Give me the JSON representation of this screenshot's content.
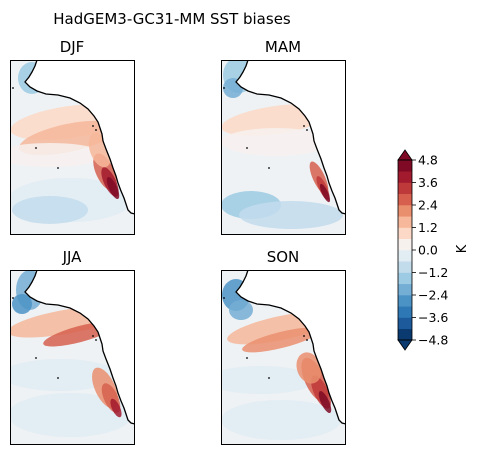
{
  "title": "HadGEM3-GC31-MM SST biases",
  "chart_data": [
    {
      "type": "heatmap",
      "title": "DJF"
    },
    {
      "type": "heatmap",
      "title": "MAM"
    },
    {
      "type": "heatmap",
      "title": "JJA"
    },
    {
      "type": "heatmap",
      "title": "SON"
    }
  ],
  "colorbar": {
    "label": "K",
    "range": [
      -4.8,
      4.8
    ],
    "ticks": [
      "4.8",
      "3.6",
      "2.4",
      "1.2",
      "0.0",
      "−1.2",
      "−2.4",
      "−3.6",
      "−4.8"
    ],
    "levels": 16,
    "extend": "both",
    "colormap": "RdBu_r",
    "colors": [
      "#0a3a70",
      "#1d5a9c",
      "#2f78b6",
      "#4c93c5",
      "#74aed4",
      "#9ccbe3",
      "#c2dcec",
      "#e1ecf3",
      "#f7f1ee",
      "#fbd9c6",
      "#f6b79a",
      "#ea8f6e",
      "#d6604d",
      "#be3a3a",
      "#a11a2e",
      "#7e0a25"
    ]
  }
}
